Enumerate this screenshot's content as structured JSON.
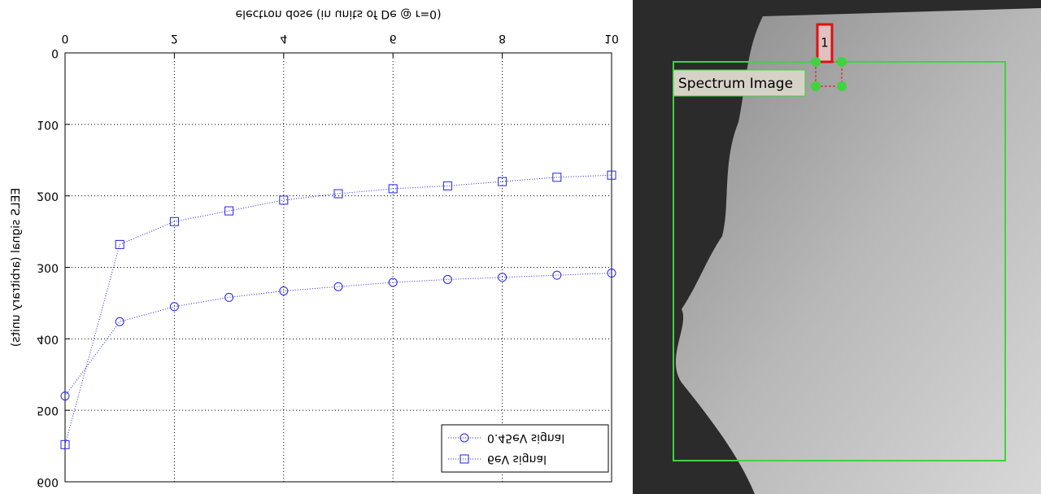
{
  "chart_data": {
    "type": "line",
    "xlabel": "electron dose (in units of De @ r=0)",
    "ylabel": "EELS signal    (arbitrary units)",
    "x": [
      0,
      1,
      2,
      3,
      4,
      5,
      6,
      7,
      8,
      9,
      10
    ],
    "series": [
      {
        "name": "6eV signal",
        "color": "#2222ee",
        "marker": "square",
        "values": [
          548,
          268,
          236,
          221,
          206,
          197,
          190,
          186,
          180,
          174,
          171
        ]
      },
      {
        "name": "0.45eV signal",
        "color": "#2222ee",
        "marker": "circle",
        "values": [
          480,
          376,
          355,
          342,
          333,
          327,
          321,
          317,
          314,
          311,
          308
        ]
      }
    ],
    "xlim": [
      0,
      10
    ],
    "xticks": [
      0,
      2,
      4,
      6,
      8,
      10
    ],
    "ylim": [
      0,
      600
    ],
    "yticks": [
      0,
      100,
      200,
      300,
      400,
      500,
      600
    ],
    "grid": true,
    "legend": "top-right",
    "flipped_vertically": true
  },
  "image_panel": {
    "label": "Spectrum Image",
    "marker": "1"
  }
}
